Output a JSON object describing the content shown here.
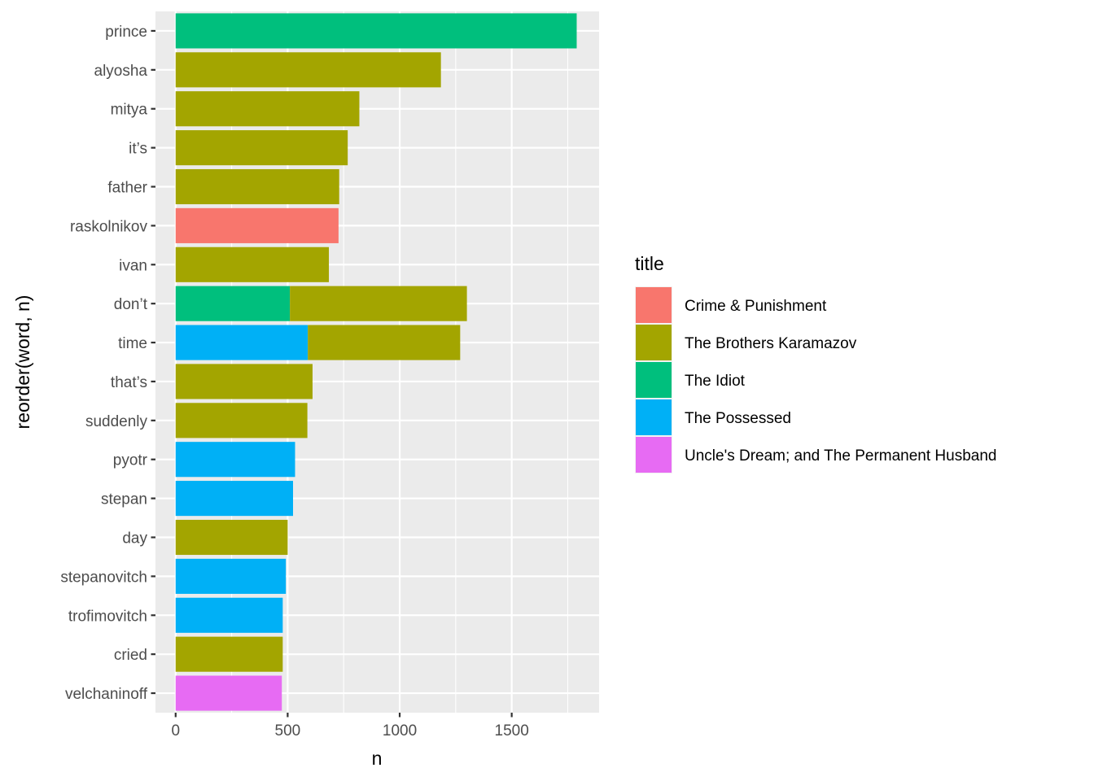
{
  "chart_data": {
    "type": "bar",
    "orientation": "horizontal",
    "stacked": true,
    "xlabel": "n",
    "ylabel": "reorder(word, n)",
    "xlim": [
      -90,
      1890
    ],
    "x_ticks": [
      0,
      500,
      1000,
      1500
    ],
    "x_tick_labels": [
      "0",
      "500",
      "1000",
      "1500"
    ],
    "grid": true,
    "legend": {
      "title": "title",
      "position": "right",
      "entries": [
        {
          "name": "Crime & Punishment",
          "color": "#F8766D"
        },
        {
          "name": "The Brothers Karamazov",
          "color": "#A3A500"
        },
        {
          "name": "The Idiot",
          "color": "#00BF7D"
        },
        {
          "name": "The Possessed",
          "color": "#00B0F6"
        },
        {
          "name": "Uncle's Dream; and The Permanent Husband",
          "color": "#E76BF3"
        }
      ]
    },
    "categories": [
      "prince",
      "alyosha",
      "mitya",
      "it’s",
      "father",
      "raskolnikov",
      "ivan",
      "don’t",
      "time",
      "that’s",
      "suddenly",
      "pyotr",
      "stepan",
      "day",
      "stepanovitch",
      "trofimovitch",
      "cried",
      "velchaninoff"
    ],
    "series": [
      {
        "name": "Crime & Punishment",
        "values": [
          0,
          0,
          0,
          0,
          0,
          727,
          0,
          0,
          0,
          0,
          0,
          0,
          0,
          0,
          0,
          0,
          0,
          0
        ]
      },
      {
        "name": "The Brothers Karamazov",
        "values": [
          0,
          1184,
          820,
          768,
          730,
          0,
          684,
          790,
          680,
          611,
          588,
          0,
          0,
          500,
          0,
          0,
          478,
          0
        ]
      },
      {
        "name": "The Idiot",
        "values": [
          1790,
          0,
          0,
          0,
          0,
          0,
          0,
          510,
          0,
          0,
          0,
          0,
          0,
          0,
          0,
          0,
          0,
          0
        ]
      },
      {
        "name": "The Possessed",
        "values": [
          0,
          0,
          0,
          0,
          0,
          0,
          0,
          0,
          590,
          0,
          0,
          533,
          524,
          0,
          492,
          478,
          0,
          0
        ]
      },
      {
        "name": "Uncle's Dream; and The Permanent Husband",
        "values": [
          0,
          0,
          0,
          0,
          0,
          0,
          0,
          0,
          0,
          0,
          0,
          0,
          0,
          0,
          0,
          0,
          0,
          474
        ]
      }
    ],
    "stack_order": [
      "The Idiot",
      "The Possessed",
      "Uncle's Dream; and The Permanent Husband",
      "Crime & Punishment",
      "The Brothers Karamazov"
    ]
  },
  "colors": {
    "panel_background": "#EBEBEB",
    "grid_major": "#FFFFFF",
    "tick_text": "#4D4D4D",
    "tick_mark": "#333333"
  }
}
